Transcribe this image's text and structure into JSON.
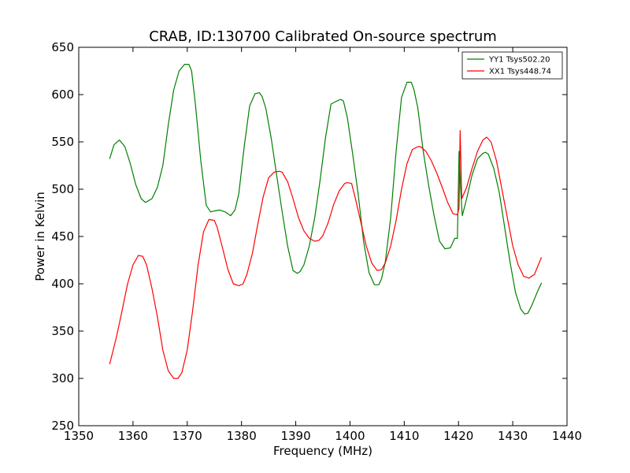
{
  "chart_data": {
    "type": "line",
    "title": "CRAB, ID:130700 Calibrated On-source spectrum",
    "xlabel": "Frequency (MHz)",
    "ylabel": "Power in Kelvin",
    "xlim": [
      1350,
      1440
    ],
    "ylim": [
      250,
      650
    ],
    "xticks": [
      1350,
      1360,
      1370,
      1380,
      1390,
      1400,
      1410,
      1420,
      1430,
      1440
    ],
    "yticks": [
      250,
      300,
      350,
      400,
      450,
      500,
      550,
      600,
      650
    ],
    "grid": false,
    "legend_position": "top-right",
    "series": [
      {
        "name": "YY1 Tsys502.20",
        "color": "#008000",
        "x": [
          1355.7,
          1356.5,
          1357.5,
          1358.5,
          1359.5,
          1360.5,
          1361.5,
          1362.3,
          1363.5,
          1364.5,
          1365.5,
          1366.5,
          1367.5,
          1368.5,
          1369.5,
          1370.3,
          1370.8,
          1371.5,
          1372.5,
          1373.5,
          1374.3,
          1375.0,
          1376.0,
          1377.0,
          1378.0,
          1378.8,
          1379.5,
          1380.5,
          1381.5,
          1382.5,
          1383.3,
          1383.8,
          1384.5,
          1385.5,
          1386.5,
          1387.5,
          1388.5,
          1389.5,
          1390.3,
          1390.8,
          1391.5,
          1392.5,
          1393.5,
          1394.5,
          1395.5,
          1396.5,
          1397.5,
          1398.3,
          1398.8,
          1399.5,
          1400.5,
          1401.5,
          1402.5,
          1403.5,
          1404.5,
          1405.3,
          1405.8,
          1406.5,
          1407.5,
          1408.5,
          1409.5,
          1410.5,
          1411.3,
          1411.8,
          1412.5,
          1413.5,
          1414.5,
          1415.5,
          1416.5,
          1417.5,
          1418.5,
          1419.3,
          1419.8,
          1420.1,
          1420.4,
          1420.7,
          1421.5,
          1422.5,
          1423.5,
          1424.5,
          1425.0,
          1425.5,
          1426.5,
          1427.5,
          1428.5,
          1429.5,
          1430.5,
          1431.5,
          1432.2,
          1432.8,
          1433.5,
          1434.5,
          1435.3
        ],
        "values": [
          532,
          547,
          552,
          545,
          527,
          505,
          490,
          486,
          490,
          502,
          525,
          568,
          605,
          625,
          632,
          632,
          625,
          590,
          530,
          483,
          476,
          477,
          478,
          476,
          472,
          478,
          495,
          545,
          588,
          601,
          602,
          598,
          585,
          553,
          514,
          476,
          440,
          414,
          411,
          413,
          420,
          440,
          470,
          510,
          555,
          590,
          593,
          595,
          593,
          576,
          537,
          495,
          445,
          412,
          399,
          399,
          405,
          423,
          470,
          540,
          597,
          613,
          613,
          605,
          586,
          540,
          504,
          472,
          445,
          437,
          438,
          448,
          448,
          540,
          500,
          472,
          490,
          515,
          532,
          538,
          539,
          537,
          522,
          497,
          460,
          423,
          391,
          373,
          368,
          369,
          377,
          391,
          401
        ]
      },
      {
        "name": "XX1 Tsys448.74",
        "color": "#ff0000",
        "x": [
          1355.7,
          1357.0,
          1358.0,
          1359.0,
          1360.0,
          1361.0,
          1361.8,
          1362.5,
          1363.5,
          1364.5,
          1365.5,
          1366.5,
          1367.5,
          1368.3,
          1369.0,
          1370.0,
          1371.0,
          1372.0,
          1373.0,
          1374.0,
          1375.0,
          1375.5,
          1376.5,
          1377.5,
          1378.5,
          1379.5,
          1380.3,
          1381.0,
          1382.0,
          1383.0,
          1384.0,
          1385.0,
          1386.0,
          1387.0,
          1387.5,
          1388.5,
          1389.5,
          1390.5,
          1391.5,
          1392.5,
          1393.5,
          1394.3,
          1395.0,
          1396.0,
          1397.0,
          1398.0,
          1399.0,
          1399.5,
          1400.3,
          1401.0,
          1402.0,
          1403.0,
          1404.0,
          1405.0,
          1405.8,
          1406.5,
          1407.5,
          1408.5,
          1409.5,
          1410.5,
          1411.5,
          1412.5,
          1413.0,
          1414.0,
          1415.0,
          1416.0,
          1417.0,
          1418.0,
          1419.0,
          1419.8,
          1420.1,
          1420.3,
          1420.6,
          1421.5,
          1422.5,
          1423.5,
          1424.5,
          1425.2,
          1426.0,
          1427.0,
          1428.0,
          1429.0,
          1430.0,
          1431.0,
          1432.0,
          1433.0,
          1434.0,
          1435.3
        ],
        "values": [
          315,
          345,
          372,
          400,
          420,
          430,
          429,
          420,
          395,
          365,
          330,
          308,
          300,
          300,
          306,
          330,
          372,
          420,
          455,
          468,
          467,
          460,
          438,
          415,
          400,
          398,
          400,
          410,
          432,
          463,
          492,
          512,
          518,
          519,
          518,
          508,
          490,
          470,
          456,
          448,
          445,
          446,
          451,
          465,
          484,
          498,
          506,
          507,
          506,
          490,
          465,
          440,
          422,
          414,
          415,
          422,
          440,
          467,
          500,
          527,
          542,
          545,
          545,
          540,
          530,
          517,
          502,
          486,
          474,
          473,
          480,
          562,
          490,
          502,
          522,
          540,
          552,
          555,
          550,
          530,
          500,
          470,
          440,
          420,
          408,
          406,
          410,
          428
        ]
      }
    ]
  }
}
